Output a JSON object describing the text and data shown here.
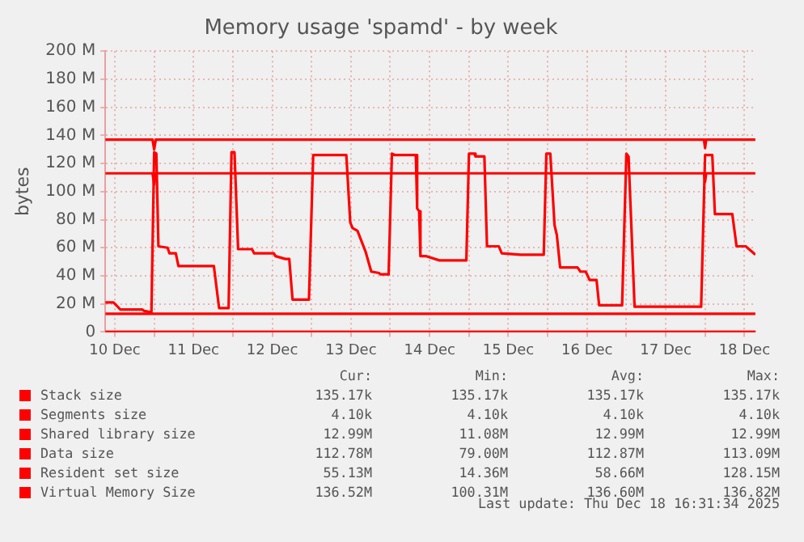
{
  "chart_data": {
    "type": "line",
    "title": "Memory usage 'spamd' - by week",
    "ylabel": "bytes",
    "xlim": [
      "2025-12-10T09:06",
      "2025-12-18T15:22"
    ],
    "xticks": [
      {
        "value": "2025-12-10T12:00",
        "label": "10 Dec"
      },
      {
        "value": "2025-12-11T00:00",
        "label": null
      },
      {
        "value": "2025-12-11T12:00",
        "label": "11 Dec"
      },
      {
        "value": "2025-12-12T00:00",
        "label": null
      },
      {
        "value": "2025-12-12T12:00",
        "label": "12 Dec"
      },
      {
        "value": "2025-12-13T00:00",
        "label": null
      },
      {
        "value": "2025-12-13T12:00",
        "label": "13 Dec"
      },
      {
        "value": "2025-12-14T00:00",
        "label": null
      },
      {
        "value": "2025-12-14T12:00",
        "label": "14 Dec"
      },
      {
        "value": "2025-12-15T00:00",
        "label": null
      },
      {
        "value": "2025-12-15T12:00",
        "label": "15 Dec"
      },
      {
        "value": "2025-12-16T00:00",
        "label": null
      },
      {
        "value": "2025-12-16T12:00",
        "label": "16 Dec"
      },
      {
        "value": "2025-12-17T00:00",
        "label": null
      },
      {
        "value": "2025-12-17T12:00",
        "label": "17 Dec"
      },
      {
        "value": "2025-12-18T00:00",
        "label": null
      },
      {
        "value": "2025-12-18T12:00",
        "label": "18 Dec"
      }
    ],
    "ylim": [
      0,
      200
    ],
    "yticks": [
      {
        "value": 0,
        "label": "0"
      },
      {
        "value": 20,
        "label": "20 M"
      },
      {
        "value": 40,
        "label": "40 M"
      },
      {
        "value": 60,
        "label": "60 M"
      },
      {
        "value": 80,
        "label": "80 M"
      },
      {
        "value": 100,
        "label": "100 M"
      },
      {
        "value": 120,
        "label": "120 M"
      },
      {
        "value": 140,
        "label": "140 M"
      },
      {
        "value": 160,
        "label": "160 M"
      },
      {
        "value": 180,
        "label": "180 M"
      },
      {
        "value": 200,
        "label": "200 M"
      }
    ],
    "grid": true,
    "legend": "bottom",
    "marker": "none",
    "series": [
      {
        "name": "Stack size",
        "color": "#ff0000",
        "x": [
          "2025-12-10T09:06",
          "2025-12-18T15:20"
        ],
        "values": [
          0.1,
          0.1
        ]
      },
      {
        "name": "Segments size",
        "color": "#ff0000",
        "x": [
          "2025-12-10T09:06",
          "2025-12-18T15:20"
        ],
        "values": [
          0,
          0
        ]
      },
      {
        "name": "Shared library size",
        "color": "#ff0000",
        "x": [
          "2025-12-10T09:06",
          "2025-12-18T15:20"
        ],
        "values": [
          13,
          13
        ]
      },
      {
        "name": "Data size",
        "color": "#ff0000",
        "x": [
          "2025-12-10T09:06",
          "2025-12-10T23:30",
          "2025-12-11T00:00",
          "2025-12-11T00:30",
          "2025-12-17T23:40",
          "2025-12-18T00:00",
          "2025-12-18T00:20",
          "2025-12-18T15:20"
        ],
        "values": [
          113,
          113,
          105,
          113,
          113,
          107,
          113,
          113
        ]
      },
      {
        "name": "Resident set size",
        "color": "#ff0000",
        "x": [
          "2025-12-10T09:06",
          "2025-12-10T11:36",
          "2025-12-10T13:42",
          "2025-12-10T20:20",
          "2025-12-10T21:00",
          "2025-12-10T23:10",
          "2025-12-11T00:00",
          "2025-12-11T00:40",
          "2025-12-11T01:18",
          "2025-12-11T04:06",
          "2025-12-11T04:40",
          "2025-12-11T06:36",
          "2025-12-11T07:24",
          "2025-12-11T18:12",
          "2025-12-11T19:48",
          "2025-12-11T22:42",
          "2025-12-11T23:35",
          "2025-12-12T00:30",
          "2025-12-12T01:36",
          "2025-12-12T05:50",
          "2025-12-12T06:30",
          "2025-12-12T12:30",
          "2025-12-12T13:00",
          "2025-12-12T16:00",
          "2025-12-12T17:12",
          "2025-12-12T18:12",
          "2025-12-12T23:12",
          "2025-12-13T00:30",
          "2025-12-13T10:36",
          "2025-12-13T11:48",
          "2025-12-13T12:30",
          "2025-12-13T14:00",
          "2025-12-13T16:30",
          "2025-12-13T18:12",
          "2025-12-13T20:36",
          "2025-12-13T21:00",
          "2025-12-13T23:30",
          "2025-12-14T00:30",
          "2025-12-14T01:30",
          "2025-12-14T07:48",
          "2025-12-14T08:12",
          "2025-12-14T08:48",
          "2025-12-14T09:12",
          "2025-12-14T11:00",
          "2025-12-14T15:00",
          "2025-12-14T23:12",
          "2025-12-15T00:00",
          "2025-12-15T01:36",
          "2025-12-15T02:00",
          "2025-12-15T04:42",
          "2025-12-15T05:30",
          "2025-12-15T09:06",
          "2025-12-15T10:00",
          "2025-12-15T15:42",
          "2025-12-15T16:00",
          "2025-12-15T22:48",
          "2025-12-15T23:36",
          "2025-12-16T00:48",
          "2025-12-16T02:06",
          "2025-12-16T02:48",
          "2025-12-16T03:48",
          "2025-12-16T09:06",
          "2025-12-16T10:00",
          "2025-12-16T11:36",
          "2025-12-16T12:48",
          "2025-12-16T14:54",
          "2025-12-16T15:42",
          "2025-12-16T22:42",
          "2025-12-17T00:00",
          "2025-12-17T00:40",
          "2025-12-17T02:30",
          "2025-12-17T22:48",
          "2025-12-18T00:00",
          "2025-12-18T02:12",
          "2025-12-18T03:00",
          "2025-12-18T08:18",
          "2025-12-18T09:36",
          "2025-12-18T12:24",
          "2025-12-18T14:24",
          "2025-12-18T15:20"
        ],
        "values": [
          21,
          21,
          16,
          16,
          15,
          14,
          128,
          127,
          61,
          60,
          56,
          56,
          47,
          47,
          17,
          17,
          128,
          128,
          59,
          59,
          56,
          56,
          54,
          52,
          52,
          23,
          23,
          126,
          126,
          78,
          74,
          72,
          57,
          43,
          42,
          41,
          41,
          127,
          126,
          126,
          88,
          86,
          54,
          54,
          51,
          51,
          127,
          127,
          125,
          125,
          61,
          61,
          56,
          55,
          55,
          55,
          127,
          127,
          76,
          69,
          46,
          46,
          43,
          43,
          37,
          37,
          19,
          19,
          127,
          125,
          18,
          18,
          126,
          126,
          84,
          84,
          61,
          61,
          57,
          55
        ]
      },
      {
        "name": "Virtual Memory Size",
        "color": "#ff0000",
        "x": [
          "2025-12-10T09:06",
          "2025-12-10T23:30",
          "2025-12-11T00:00",
          "2025-12-11T00:30",
          "2025-12-17T23:40",
          "2025-12-18T00:00",
          "2025-12-18T00:20",
          "2025-12-18T15:20"
        ],
        "values": [
          137,
          137,
          130,
          137,
          137,
          131,
          137,
          137
        ]
      }
    ],
    "annotations": [
      "Cur:",
      "Min:",
      "Avg:",
      "Max:",
      "135.17k",
      "135.17k",
      "135.17k",
      "135.17k",
      "4.10k",
      "4.10k",
      "4.10k",
      "4.10k",
      "12.99M",
      "11.08M",
      "12.99M",
      "12.99M",
      "112.78M",
      "79.00M",
      "112.87M",
      "113.09M",
      "55.13M",
      "14.36M",
      "58.66M",
      "128.15M",
      "136.52M",
      "100.31M",
      "136.60M",
      "136.82M",
      "Last update: Thu Dec 18 16:31:34 2025"
    ]
  }
}
